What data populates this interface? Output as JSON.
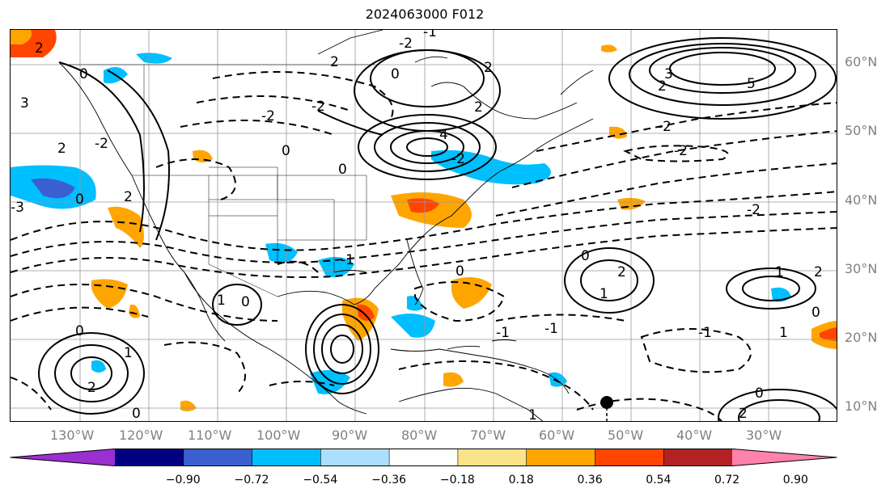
{
  "title": "2024063000 F012",
  "lat_labels": [
    "60°N",
    "50°N",
    "40°N",
    "30°N",
    "20°N",
    "10°N"
  ],
  "lon_labels": [
    "130°W",
    "120°W",
    "110°W",
    "100°W",
    "90°W",
    "80°W",
    "70°W",
    "60°W",
    "50°W",
    "40°W",
    "30°W"
  ],
  "colorbar": {
    "ticks": [
      "−0.90",
      "−0.72",
      "−0.54",
      "−0.36",
      "−0.18",
      "0.18",
      "0.36",
      "0.54",
      "0.72",
      "0.90"
    ],
    "colors": [
      "#9b30d0",
      "#000080",
      "#3b5fcf",
      "#00bfff",
      "#aadfff",
      "#ffffff",
      "#fbe38a",
      "#ffa500",
      "#ff4500",
      "#b22222",
      "#ff82ab"
    ]
  },
  "contour_labels": [
    "2",
    "0",
    "3",
    "2",
    "-2",
    "-3",
    "2",
    "0",
    "2",
    "-2",
    "0",
    "-2",
    "-1",
    "2",
    "0",
    "-2",
    "0",
    "2",
    "-1",
    "1",
    "1",
    "2",
    "0",
    "0",
    "-2",
    "3",
    "2",
    "4",
    "5",
    "-2",
    "-2",
    "-2",
    "0",
    "0",
    "1",
    "2",
    "1",
    "0",
    "-1",
    "-1",
    "2",
    "0",
    "0",
    "1",
    "1",
    "2",
    "-1"
  ],
  "marker": {
    "kind": "black-dot"
  }
}
